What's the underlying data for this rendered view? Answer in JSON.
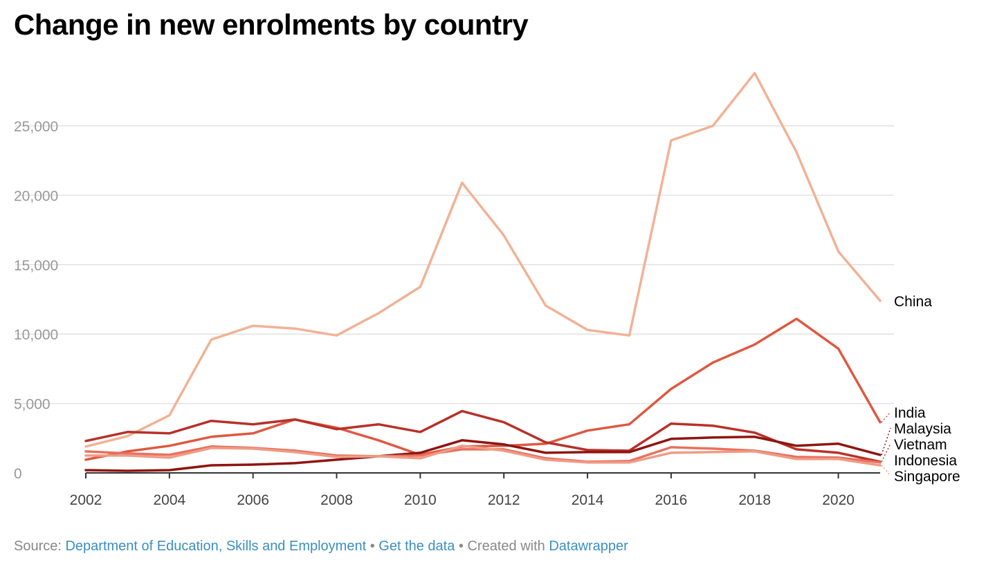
{
  "title": "Change in new enrolments by country",
  "footer": {
    "source_prefix": "Source: ",
    "source_name": "Department of Education, Skills and Employment",
    "separator": " • ",
    "get_data": "Get the data",
    "created_with": "Created with ",
    "tool": "Datawrapper"
  },
  "chart_data": {
    "type": "line",
    "title": "Change in new enrolments by country",
    "xlabel": "",
    "ylabel": "",
    "x": [
      2002,
      2003,
      2004,
      2005,
      2006,
      2007,
      2008,
      2009,
      2010,
      2011,
      2012,
      2013,
      2014,
      2015,
      2016,
      2017,
      2018,
      2019,
      2020,
      2021
    ],
    "xlim": [
      2002,
      2021
    ],
    "ylim": [
      0,
      28800
    ],
    "x_ticks": [
      "2002",
      "2004",
      "2006",
      "2008",
      "2010",
      "2012",
      "2014",
      "2016",
      "2018",
      "2020"
    ],
    "y_ticks": [
      "0",
      "5,000",
      "10,000",
      "15,000",
      "20,000",
      "25,000"
    ],
    "grid": "horizontal",
    "legend": "direct labels at right",
    "series": [
      {
        "name": "China",
        "color": "#f1b295",
        "values": [
          1900,
          2650,
          4150,
          9600,
          10600,
          10400,
          9900,
          11500,
          13400,
          20900,
          17100,
          12050,
          10300,
          9900,
          23950,
          25000,
          28800,
          23100,
          15950,
          12400
        ]
      },
      {
        "name": "India",
        "color": "#df5840",
        "values": [
          950,
          1550,
          1950,
          2600,
          2850,
          3850,
          3250,
          2350,
          1300,
          1900,
          1950,
          2100,
          3050,
          3500,
          6050,
          7950,
          9250,
          11100,
          8950,
          3650
        ]
      },
      {
        "name": "Vietnam",
        "color": "#b83028",
        "values": [
          2300,
          2950,
          2850,
          3750,
          3500,
          3850,
          3150,
          3500,
          2950,
          4450,
          3650,
          2200,
          1650,
          1600,
          3550,
          3400,
          2900,
          1700,
          1450,
          800
        ]
      },
      {
        "name": "Malaysia",
        "color": "#8e1511",
        "values": [
          200,
          150,
          200,
          550,
          600,
          700,
          950,
          1200,
          1450,
          2350,
          2050,
          1450,
          1500,
          1500,
          2450,
          2550,
          2600,
          1950,
          2100,
          1300
        ]
      },
      {
        "name": "Indonesia",
        "color": "#e8705f",
        "values": [
          1550,
          1400,
          1300,
          1900,
          1800,
          1600,
          1250,
          1200,
          1250,
          1700,
          1700,
          1050,
          800,
          850,
          1850,
          1750,
          1600,
          1150,
          1100,
          750
        ]
      },
      {
        "name": "Singapore",
        "color": "#ef9c85",
        "values": [
          1250,
          1250,
          1100,
          1800,
          1750,
          1500,
          1150,
          1200,
          1050,
          1950,
          1600,
          950,
          750,
          750,
          1450,
          1500,
          1550,
          1000,
          1000,
          550
        ]
      }
    ]
  }
}
